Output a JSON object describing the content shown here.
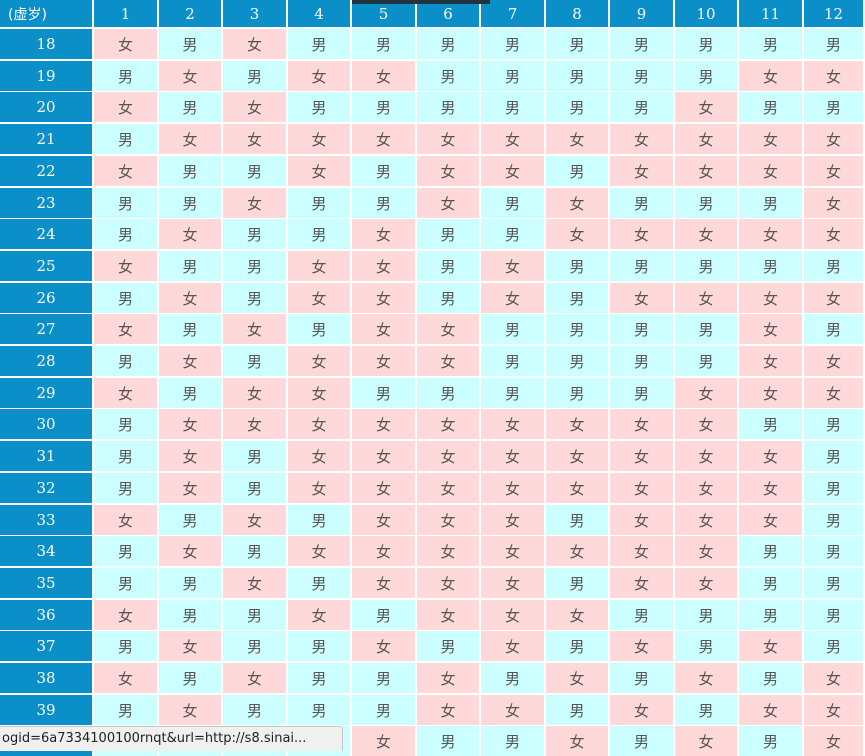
{
  "table": {
    "corner_label": "(虚岁)",
    "months": [
      "1",
      "2",
      "3",
      "4",
      "5",
      "6",
      "7",
      "8",
      "9",
      "10",
      "11",
      "12"
    ],
    "boy_label": "男",
    "girl_label": "女",
    "rows": [
      {
        "age": "18",
        "cells": [
          "女",
          "男",
          "女",
          "男",
          "男",
          "男",
          "男",
          "男",
          "男",
          "男",
          "男",
          "男"
        ]
      },
      {
        "age": "19",
        "cells": [
          "男",
          "女",
          "男",
          "女",
          "女",
          "男",
          "男",
          "男",
          "男",
          "男",
          "女",
          "女"
        ]
      },
      {
        "age": "20",
        "cells": [
          "女",
          "男",
          "女",
          "男",
          "男",
          "男",
          "男",
          "男",
          "男",
          "女",
          "男",
          "男"
        ]
      },
      {
        "age": "21",
        "cells": [
          "男",
          "女",
          "女",
          "女",
          "女",
          "女",
          "女",
          "女",
          "女",
          "女",
          "女",
          "女"
        ]
      },
      {
        "age": "22",
        "cells": [
          "女",
          "男",
          "男",
          "女",
          "男",
          "女",
          "女",
          "男",
          "女",
          "女",
          "女",
          "女"
        ]
      },
      {
        "age": "23",
        "cells": [
          "男",
          "男",
          "女",
          "男",
          "男",
          "女",
          "男",
          "女",
          "男",
          "男",
          "男",
          "女"
        ]
      },
      {
        "age": "24",
        "cells": [
          "男",
          "女",
          "男",
          "男",
          "女",
          "男",
          "男",
          "女",
          "女",
          "女",
          "女",
          "女"
        ]
      },
      {
        "age": "25",
        "cells": [
          "女",
          "男",
          "男",
          "女",
          "女",
          "男",
          "女",
          "男",
          "男",
          "男",
          "男",
          "男"
        ]
      },
      {
        "age": "26",
        "cells": [
          "男",
          "女",
          "男",
          "女",
          "女",
          "男",
          "女",
          "男",
          "女",
          "女",
          "女",
          "女"
        ]
      },
      {
        "age": "27",
        "cells": [
          "女",
          "男",
          "女",
          "男",
          "女",
          "女",
          "男",
          "男",
          "男",
          "男",
          "女",
          "男"
        ]
      },
      {
        "age": "28",
        "cells": [
          "男",
          "女",
          "男",
          "女",
          "女",
          "女",
          "男",
          "男",
          "男",
          "男",
          "女",
          "女"
        ]
      },
      {
        "age": "29",
        "cells": [
          "女",
          "男",
          "女",
          "女",
          "男",
          "男",
          "男",
          "男",
          "男",
          "女",
          "女",
          "女"
        ]
      },
      {
        "age": "30",
        "cells": [
          "男",
          "女",
          "女",
          "女",
          "女",
          "女",
          "女",
          "女",
          "女",
          "女",
          "男",
          "男"
        ]
      },
      {
        "age": "31",
        "cells": [
          "男",
          "女",
          "男",
          "女",
          "女",
          "女",
          "女",
          "女",
          "女",
          "女",
          "女",
          "男"
        ]
      },
      {
        "age": "32",
        "cells": [
          "男",
          "女",
          "男",
          "女",
          "女",
          "女",
          "女",
          "女",
          "女",
          "女",
          "女",
          "男"
        ]
      },
      {
        "age": "33",
        "cells": [
          "女",
          "男",
          "女",
          "男",
          "女",
          "女",
          "女",
          "男",
          "女",
          "女",
          "女",
          "男"
        ]
      },
      {
        "age": "34",
        "cells": [
          "男",
          "女",
          "男",
          "女",
          "女",
          "女",
          "女",
          "女",
          "女",
          "女",
          "男",
          "男"
        ]
      },
      {
        "age": "35",
        "cells": [
          "男",
          "男",
          "女",
          "男",
          "女",
          "女",
          "女",
          "男",
          "女",
          "女",
          "男",
          "男"
        ]
      },
      {
        "age": "36",
        "cells": [
          "女",
          "男",
          "男",
          "女",
          "男",
          "女",
          "女",
          "女",
          "男",
          "男",
          "男",
          "男"
        ]
      },
      {
        "age": "37",
        "cells": [
          "男",
          "女",
          "男",
          "男",
          "女",
          "男",
          "女",
          "男",
          "女",
          "男",
          "女",
          "男"
        ]
      },
      {
        "age": "38",
        "cells": [
          "女",
          "男",
          "女",
          "男",
          "男",
          "女",
          "男",
          "女",
          "男",
          "女",
          "男",
          "女"
        ]
      },
      {
        "age": "39",
        "cells": [
          "男",
          "女",
          "男",
          "男",
          "男",
          "女",
          "女",
          "男",
          "女",
          "男",
          "女",
          "女"
        ]
      },
      {
        "age": "",
        "cells": [
          "",
          "",
          "",
          "",
          "女",
          "男",
          "男",
          "女",
          "男",
          "女",
          "男",
          "女"
        ]
      }
    ]
  },
  "status_bar": {
    "url_text": "ogid=6a7334100100rnqt&url=http://s8.sinai..."
  }
}
